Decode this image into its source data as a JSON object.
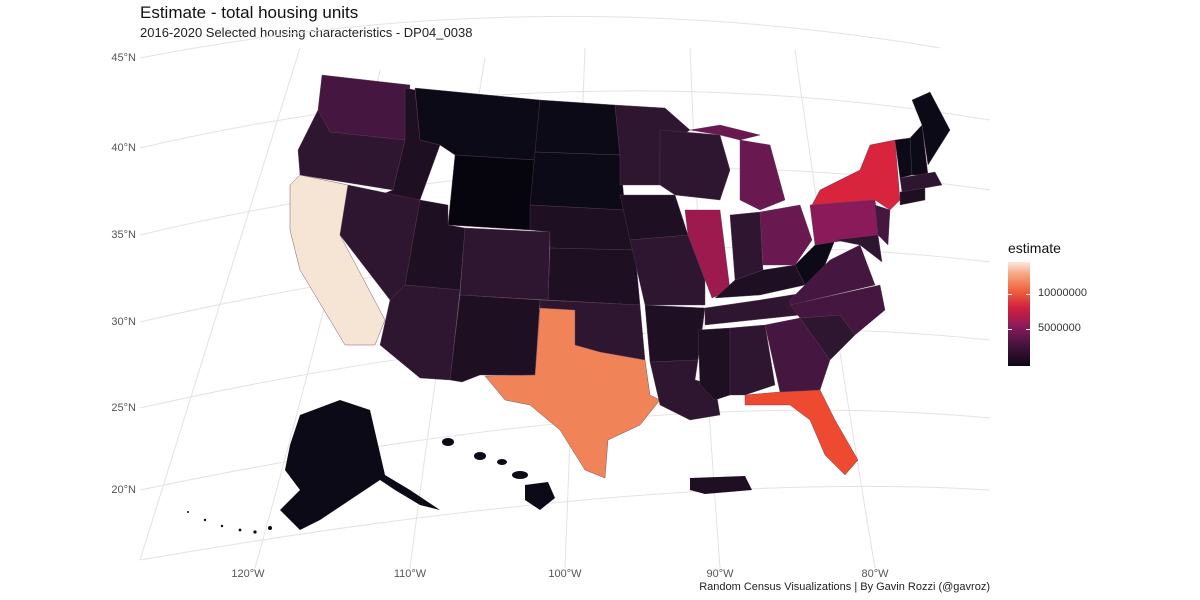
{
  "title": "Estimate - total housing units",
  "subtitle": "2016-2020 Selected housing characteristics - DP04_0038",
  "caption": "Random Census Visualizations | By Gavin Rozzi (@gavroz)",
  "lat_labels": [
    "45°N",
    "40°N",
    "35°N",
    "30°N",
    "25°N",
    "20°N"
  ],
  "lon_labels": [
    "120°W",
    "110°W",
    "100°W",
    "90°W",
    "80°W"
  ],
  "legend": {
    "title": "estimate",
    "labels": [
      "10000000",
      "5000000"
    ]
  },
  "colors": {
    "very_low": "#0d0a17",
    "low": "#1e0f22",
    "mid_low": "#2e1530",
    "mid": "#45163f",
    "mid_high": "#6a1850",
    "high": "#9c1a4e",
    "very_high": "#d8243c",
    "florida": "#ee4a32",
    "texas": "#f08458",
    "california": "#f6e4d4"
  }
}
